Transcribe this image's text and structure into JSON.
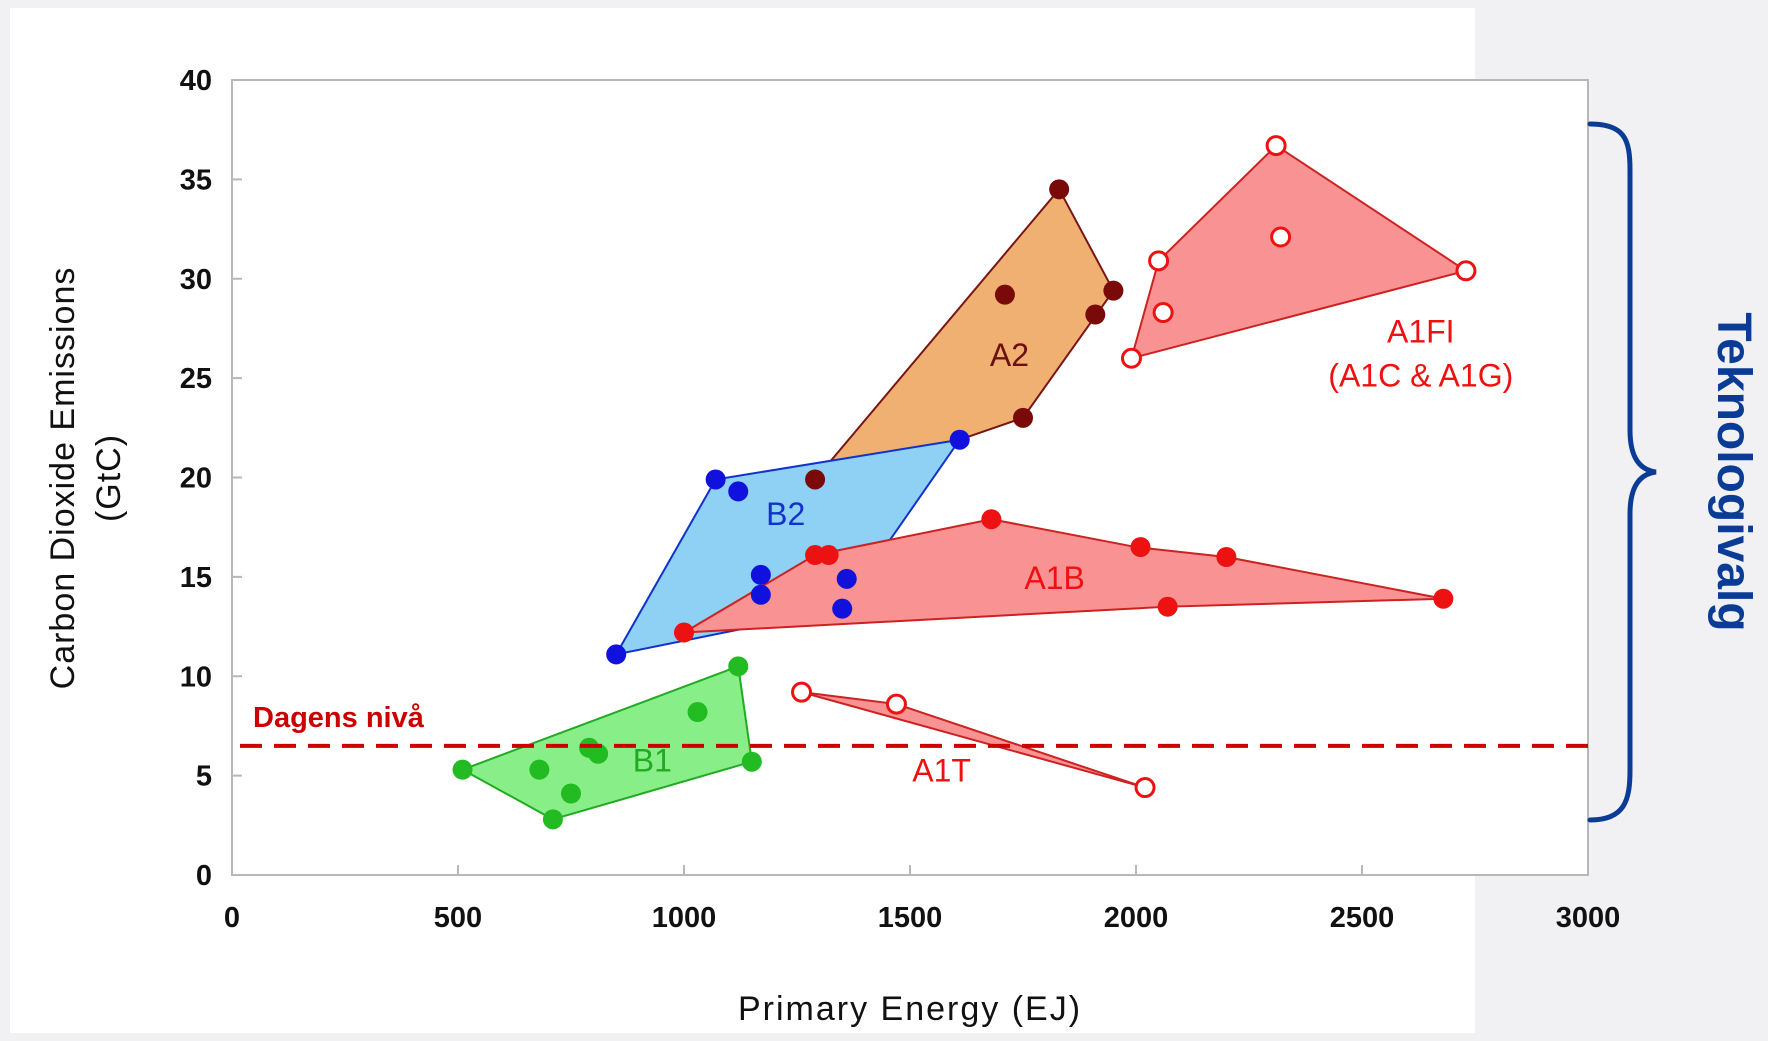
{
  "chart_data": {
    "type": "scatter",
    "xlabel": "Primary Energy (EJ)",
    "ylabel_line1": "Carbon Dioxide Emissions",
    "ylabel_line2": "(GtC)",
    "xlim": [
      0,
      3000
    ],
    "ylim": [
      0,
      40
    ],
    "x_ticks": [
      "0",
      "500",
      "1000",
      "1500",
      "2000",
      "2500",
      "3000"
    ],
    "y_ticks": [
      "0",
      "5",
      "10",
      "15",
      "20",
      "25",
      "30",
      "35",
      "40"
    ],
    "grid": false,
    "reference_line": {
      "label": "Dagens nivå",
      "y": 6.5,
      "color": "#cc0000"
    },
    "bracket_label": "Teknologivalg",
    "series": [
      {
        "name": "A2",
        "label": "A2",
        "fill": "#f0b071",
        "stroke": "#7a1515",
        "point": "#7a0a0a",
        "label_color": "#6b1010",
        "hollow": false,
        "label_pos": [
          1720,
          25.6
        ],
        "hull": [
          [
            1290,
            19.9
          ],
          [
            1830,
            34.5
          ],
          [
            1950,
            29.4
          ],
          [
            1750,
            23.0
          ],
          [
            1610,
            21.9
          ]
        ],
        "points": [
          [
            1290,
            19.9
          ],
          [
            1830,
            34.5
          ],
          [
            1710,
            29.2
          ],
          [
            1950,
            29.4
          ],
          [
            1910,
            28.2
          ],
          [
            1750,
            23.0
          ]
        ]
      },
      {
        "name": "B2",
        "label": "B2",
        "fill": "#8fd0f5",
        "stroke": "#1133cc",
        "point": "#1111dd",
        "label_color": "#1133cc",
        "hollow": false,
        "label_pos": [
          1225,
          17.6
        ],
        "hull": [
          [
            850,
            11.1
          ],
          [
            1070,
            19.9
          ],
          [
            1610,
            21.9
          ],
          [
            1350,
            13.4
          ]
        ],
        "points": [
          [
            850,
            11.1
          ],
          [
            1070,
            19.9
          ],
          [
            1120,
            19.3
          ],
          [
            1610,
            21.9
          ],
          [
            1170,
            15.1
          ],
          [
            1170,
            14.1
          ],
          [
            1360,
            14.9
          ],
          [
            1350,
            13.4
          ]
        ]
      },
      {
        "name": "A1B",
        "label": "A1B",
        "fill": "#f99292",
        "stroke": "#cc2222",
        "point": "#ee1111",
        "label_color": "#ee1111",
        "hollow": false,
        "label_pos": [
          1820,
          14.4
        ],
        "hull": [
          [
            1000,
            12.2
          ],
          [
            1290,
            16.1
          ],
          [
            1680,
            17.9
          ],
          [
            2000,
            16.5
          ],
          [
            2200,
            16.0
          ],
          [
            2680,
            13.9
          ],
          [
            2070,
            13.5
          ]
        ],
        "points": [
          [
            1000,
            12.2
          ],
          [
            1290,
            16.1
          ],
          [
            1320,
            16.1
          ],
          [
            1680,
            17.9
          ],
          [
            2010,
            16.5
          ],
          [
            2200,
            16.0
          ],
          [
            2680,
            13.9
          ],
          [
            2070,
            13.5
          ]
        ]
      },
      {
        "name": "A1FI",
        "label": "A1FI",
        "label2": "(A1C & A1G)",
        "fill": "#f99292",
        "stroke": "#cc2222",
        "point": "#ee1111",
        "label_color": "#ee1111",
        "hollow": true,
        "label_pos": [
          2630,
          26.8
        ],
        "hull": [
          [
            1990,
            26.0
          ],
          [
            2050,
            30.9
          ],
          [
            2310,
            36.7
          ],
          [
            2730,
            30.4
          ]
        ],
        "points": [
          [
            1990,
            26.0
          ],
          [
            2050,
            30.9
          ],
          [
            2310,
            36.7
          ],
          [
            2320,
            32.1
          ],
          [
            2730,
            30.4
          ],
          [
            2060,
            28.3
          ]
        ]
      },
      {
        "name": "A1T",
        "label": "A1T",
        "fill": "#f99292",
        "stroke": "#cc2222",
        "point": "#ee1111",
        "label_color": "#ee1111",
        "hollow": true,
        "label_pos": [
          1570,
          4.7
        ],
        "hull": [
          [
            1260,
            9.2
          ],
          [
            1470,
            8.6
          ],
          [
            2020,
            4.4
          ]
        ],
        "points": [
          [
            1260,
            9.2
          ],
          [
            1470,
            8.6
          ],
          [
            2020,
            4.4
          ]
        ]
      },
      {
        "name": "B1",
        "label": "B1",
        "fill": "#88ee88",
        "stroke": "#22aa22",
        "point": "#22bb22",
        "label_color": "#22aa22",
        "hollow": false,
        "label_pos": [
          930,
          5.2
        ],
        "hull": [
          [
            510,
            5.3
          ],
          [
            710,
            2.8
          ],
          [
            1150,
            5.7
          ],
          [
            1120,
            10.5
          ]
        ],
        "points": [
          [
            510,
            5.3
          ],
          [
            680,
            5.3
          ],
          [
            750,
            4.1
          ],
          [
            710,
            2.8
          ],
          [
            790,
            6.4
          ],
          [
            810,
            6.1
          ],
          [
            1030,
            8.2
          ],
          [
            1120,
            10.5
          ],
          [
            1150,
            5.7
          ]
        ]
      }
    ]
  }
}
